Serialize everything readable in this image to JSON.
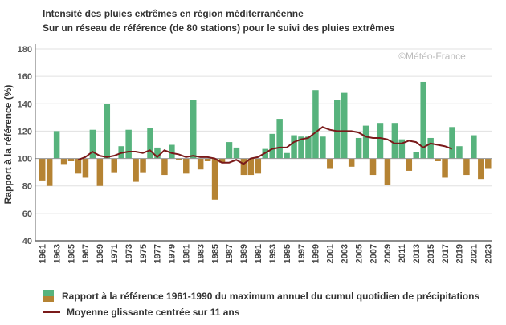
{
  "chart_data": {
    "type": "bar",
    "title": "Intensité des pluies extrêmes en région méditerranéenne",
    "subtitle": "Sur un réseau de référence (de 80 stations) pour le suivi des pluies extrêmes",
    "ylabel": "Rapport à la référence (%)",
    "xlabel": "",
    "ylim": [
      40,
      180
    ],
    "yticks": [
      40,
      60,
      80,
      100,
      120,
      140,
      160,
      180
    ],
    "baseline": 100,
    "grid": true,
    "legend_placement": "bottom",
    "watermark": "©Météo-France",
    "colors": {
      "above": "#57b37d",
      "below": "#b58333",
      "line": "#7a1a1a"
    },
    "x": [
      1961,
      1962,
      1963,
      1964,
      1965,
      1966,
      1967,
      1968,
      1969,
      1970,
      1971,
      1972,
      1973,
      1974,
      1975,
      1976,
      1977,
      1978,
      1979,
      1980,
      1981,
      1982,
      1983,
      1984,
      1985,
      1986,
      1987,
      1988,
      1989,
      1990,
      1991,
      1992,
      1993,
      1994,
      1995,
      1996,
      1997,
      1998,
      1999,
      2000,
      2001,
      2002,
      2003,
      2004,
      2005,
      2006,
      2007,
      2008,
      2009,
      2010,
      2011,
      2012,
      2013,
      2014,
      2015,
      2016,
      2017,
      2018,
      2019,
      2020,
      2021,
      2022,
      2023
    ],
    "series": [
      {
        "name": "Rapport à la référence 1961-1990 du maximum annuel du cumul quotidien de précipitations",
        "type": "bar",
        "values": [
          84,
          80,
          120,
          96,
          98,
          89,
          86,
          121,
          80,
          140,
          90,
          109,
          121,
          83,
          90,
          122,
          108,
          88,
          110,
          99,
          89,
          143,
          92,
          98,
          70,
          97,
          112,
          108,
          88,
          88,
          89,
          107,
          118,
          129,
          104,
          117,
          116,
          116,
          150,
          116,
          93,
          143,
          148,
          94,
          115,
          124,
          88,
          126,
          81,
          126,
          114,
          91,
          105,
          156,
          115,
          98,
          86,
          123,
          109,
          88,
          117,
          85,
          93
        ]
      },
      {
        "name": "Moyenne glissante centrée sur 11 ans",
        "type": "line",
        "x": [
          1966,
          1967,
          1968,
          1969,
          1970,
          1971,
          1972,
          1973,
          1974,
          1975,
          1976,
          1977,
          1978,
          1979,
          1980,
          1981,
          1982,
          1983,
          1984,
          1985,
          1986,
          1987,
          1988,
          1989,
          1990,
          1991,
          1992,
          1993,
          1994,
          1995,
          1996,
          1997,
          1998,
          1999,
          2000,
          2001,
          2002,
          2003,
          2004,
          2005,
          2006,
          2007,
          2008,
          2009,
          2010,
          2011,
          2012,
          2013,
          2014,
          2015,
          2016,
          2017,
          2018
        ],
        "values": [
          99,
          101,
          105,
          102,
          101,
          102,
          104,
          105,
          105,
          104,
          106,
          101,
          106,
          104,
          103,
          101,
          102,
          101,
          101,
          100,
          97,
          97,
          99,
          96,
          100,
          101,
          104,
          107,
          108,
          108,
          112,
          114,
          115,
          119,
          123,
          121,
          120,
          120,
          120,
          119,
          116,
          115,
          115,
          114,
          111,
          111,
          113,
          112,
          108,
          111,
          110,
          109,
          107
        ]
      }
    ]
  }
}
